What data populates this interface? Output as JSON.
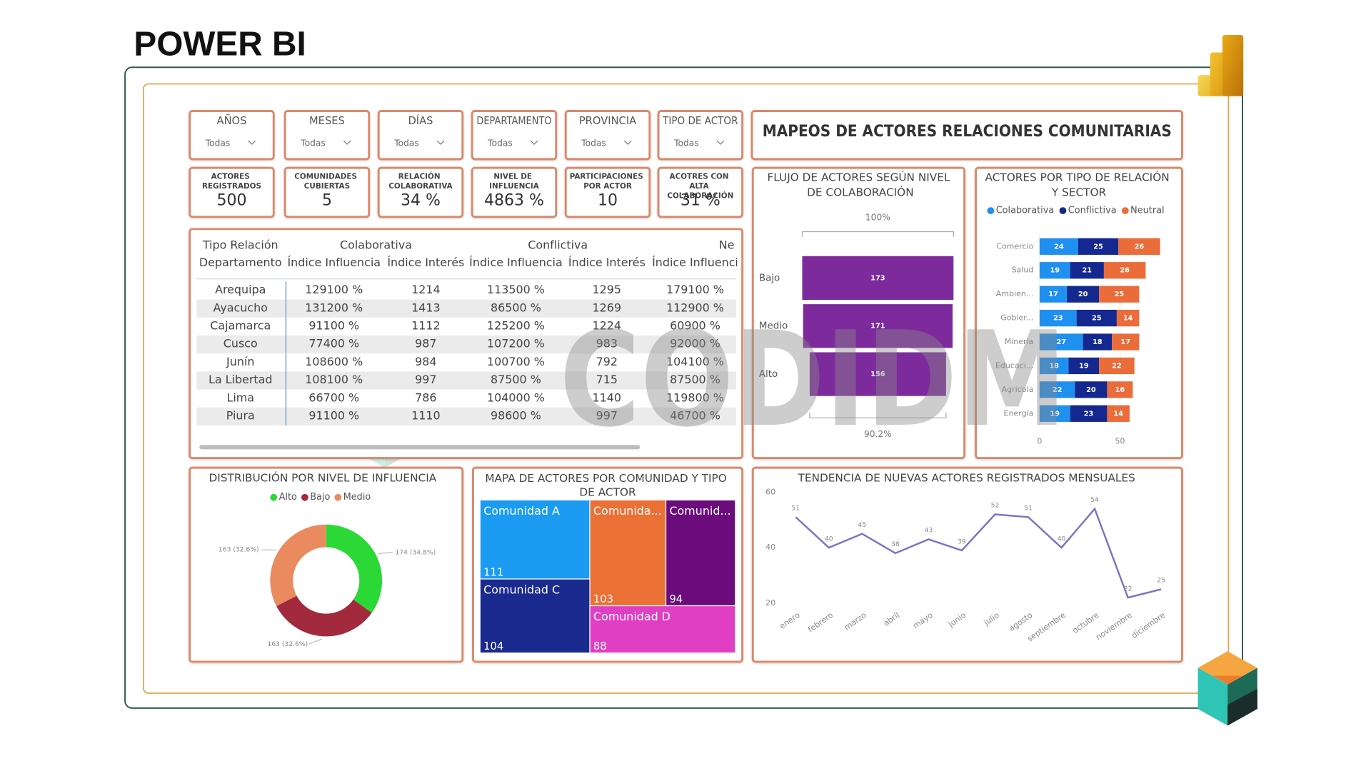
{
  "header": {
    "title": "POWER BI"
  },
  "dashboard": {
    "title": "MAPEOS DE ACTORES RELACIONES COMUNITARIAS",
    "watermark": "CODIDM"
  },
  "filters": [
    {
      "label": "AÑOS",
      "value": "Todas"
    },
    {
      "label": "MESES",
      "value": "Todas"
    },
    {
      "label": "DÍAS",
      "value": "Todas"
    },
    {
      "label": "DEPARTAMENTO",
      "value": "Todas"
    },
    {
      "label": "PROVINCIA",
      "value": "Todas"
    },
    {
      "label": "TIPO DE ACTOR",
      "value": "Todas"
    }
  ],
  "kpis": [
    {
      "label": "ACTORES REGISTRADOS",
      "value": "500"
    },
    {
      "label": "COMUNIDADES CUBIERTAS",
      "value": "5"
    },
    {
      "label": "RELACIÓN COLABORATIVA",
      "value": "34 %"
    },
    {
      "label": "NIVEL DE INFLUENCIA",
      "value": "4863 %"
    },
    {
      "label": "PARTICIPACIONES POR ACTOR",
      "value": "10"
    },
    {
      "label": "ACOTRES CON ALTA COLABORACIÓN",
      "value": "31 %"
    }
  ],
  "table": {
    "group_header": [
      "Tipo Relación",
      "Colaborativa",
      "Conflictiva",
      "Ne"
    ],
    "columns": [
      "Departamento",
      "Índice Influencia",
      "Índice Interés",
      "Índice Influencia",
      "Índice Interés",
      "Índice Influenci"
    ],
    "rows": [
      [
        "Arequipa",
        "129100 %",
        "1214",
        "113500 %",
        "1295",
        "179100 %"
      ],
      [
        "Ayacucho",
        "131200 %",
        "1413",
        "86500 %",
        "1269",
        "112900 %"
      ],
      [
        "Cajamarca",
        "91100 %",
        "1112",
        "125200 %",
        "1224",
        "60900 %"
      ],
      [
        "Cusco",
        "77400 %",
        "987",
        "107200 %",
        "983",
        "92000 %"
      ],
      [
        "Junín",
        "108600 %",
        "984",
        "100700 %",
        "792",
        "104100 %"
      ],
      [
        "La Libertad",
        "108100 %",
        "997",
        "87500 %",
        "715",
        "87500 %"
      ],
      [
        "Lima",
        "66700 %",
        "786",
        "104000 %",
        "1140",
        "119800 %"
      ],
      [
        "Piura",
        "91100 %",
        "1110",
        "98600 %",
        "997",
        "46700 %"
      ]
    ]
  },
  "chart_data": [
    {
      "type": "funnel",
      "title": "FLUJO DE ACTORES SEGÚN NIVEL DE COLABORACIÓN",
      "categories": [
        "Bajo",
        "Medio",
        "Alto"
      ],
      "values": [
        173,
        171,
        156
      ],
      "color": "#7d2a9c",
      "top_label": "100%",
      "bottom_label": "90.2%"
    },
    {
      "type": "bar",
      "orientation": "horizontal",
      "stacked": true,
      "title": "ACTORES POR TIPO DE RELACIÓN Y SECTOR",
      "categories": [
        "Comercio",
        "Salud",
        "Ambien...",
        "Gobier...",
        "Minería",
        "Educaci...",
        "Agricola",
        "Energía"
      ],
      "series": [
        {
          "name": "Colaborativa",
          "color": "#1f8ff0",
          "values": [
            24,
            19,
            17,
            23,
            27,
            18,
            22,
            19
          ]
        },
        {
          "name": "Conflictiva",
          "color": "#14288f",
          "values": [
            25,
            21,
            20,
            25,
            18,
            19,
            20,
            23
          ]
        },
        {
          "name": "Neutral",
          "color": "#ea6c3a",
          "values": [
            26,
            26,
            25,
            14,
            17,
            22,
            16,
            14
          ]
        }
      ],
      "xlim": [
        0,
        80
      ],
      "xticks": [
        0,
        50
      ],
      "legend": "top"
    },
    {
      "type": "pie",
      "donut": true,
      "title": "DISTRIBUCIÓN POR NIVEL DE INFLUENCIA",
      "categories": [
        "Alto",
        "Bajo",
        "Medio"
      ],
      "values": [
        174,
        163,
        163
      ],
      "value_labels": [
        "174 (34.8%)",
        "163 (32.6%)",
        "163 (32.6%)"
      ],
      "colors": [
        "#2bd836",
        "#a3293c",
        "#ea8a5f"
      ],
      "legend": "top"
    },
    {
      "type": "treemap",
      "title": "MAPA DE ACTORES POR COMUNIDAD Y TIPO DE ACTOR",
      "categories": [
        "Comunidad A",
        "Comunida...",
        "Comunid...",
        "Comunidad C",
        "Comunidad D"
      ],
      "values": [
        111,
        103,
        94,
        104,
        88
      ],
      "colors": [
        "#1b9cf2",
        "#ea7036",
        "#6b0b7c",
        "#1b2a8e",
        "#e03fc4"
      ]
    },
    {
      "type": "line",
      "title": "TENDENCIA DE NUEVAS ACTORES REGISTRADOS MENSUALES",
      "categories": [
        "enero",
        "febrero",
        "marzo",
        "abril",
        "mayo",
        "junio",
        "julio",
        "agosto",
        "septiembre",
        "octubre",
        "noviembre",
        "diciembre"
      ],
      "values": [
        51,
        40,
        45,
        38,
        43,
        39,
        52,
        51,
        40,
        54,
        22,
        25
      ],
      "color": "#7a73c8",
      "ylim": [
        20,
        60
      ],
      "yticks": [
        20,
        40,
        60
      ],
      "data_labels": true
    }
  ]
}
